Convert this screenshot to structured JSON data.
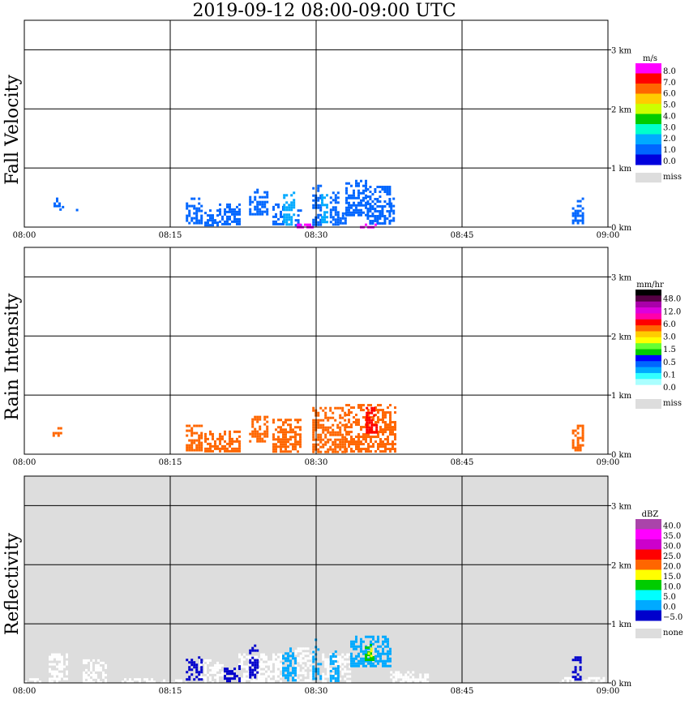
{
  "title": "2019-09-12   08:00-09:00 UTC",
  "chart_data": [
    {
      "type": "heatmap",
      "name": "Fall Velocity",
      "ylabel": "Fall Velocity",
      "time_ticks": [
        "08:00",
        "08:15",
        "08:30",
        "08:45",
        "09:00"
      ],
      "height_ticks": [
        "0 km",
        "1 km",
        "2 km",
        "3 km"
      ],
      "ylim_km": [
        0,
        3.5
      ],
      "background": "#ffffff",
      "colorbar": {
        "unit": "m/s",
        "labels": [
          "8.0",
          "7.0",
          "6.0",
          "5.0",
          "4.0",
          "3.0",
          "2.0",
          "1.0",
          "0.0"
        ],
        "colors": [
          "#ff00ff",
          "#ff0000",
          "#ff6600",
          "#ffcc00",
          "#ccff00",
          "#00cc00",
          "#00ffcc",
          "#00aaff",
          "#0066ff",
          "#0000dd"
        ],
        "miss_label": "miss",
        "miss_color": "#dddddd"
      },
      "echoes": [
        {
          "t0": 3.0,
          "t1": 3.6,
          "h0": 0.35,
          "h1": 0.5,
          "level": 0.2
        },
        {
          "t0": 3.6,
          "t1": 3.9,
          "h0": 0.3,
          "h1": 0.4,
          "level": 0.2
        },
        {
          "t0": 5.3,
          "t1": 5.5,
          "h0": 0.25,
          "h1": 0.35,
          "level": 0.2
        },
        {
          "t0": 16.6,
          "t1": 18.3,
          "h0": 0.05,
          "h1": 0.5,
          "level": 0.2
        },
        {
          "t0": 18.5,
          "t1": 19.8,
          "h0": 0.05,
          "h1": 0.3,
          "level": 0.2
        },
        {
          "t0": 20.0,
          "t1": 22.1,
          "h0": 0.05,
          "h1": 0.4,
          "level": 0.2
        },
        {
          "t0": 23.1,
          "t1": 24.9,
          "h0": 0.2,
          "h1": 0.65,
          "level": 0.2
        },
        {
          "t0": 25.5,
          "t1": 26.6,
          "h0": 0.05,
          "h1": 0.4,
          "level": 0.2
        },
        {
          "t0": 26.6,
          "t1": 27.8,
          "h0": 0.05,
          "h1": 0.6,
          "level": 1.7
        },
        {
          "t0": 27.8,
          "t1": 28.5,
          "h0": 0.05,
          "h1": 0.3,
          "level": 0.5
        },
        {
          "t0": 29.6,
          "t1": 30.5,
          "h0": 0.05,
          "h1": 0.8,
          "level": 0.5
        },
        {
          "t0": 30.5,
          "t1": 31.0,
          "h0": 0.1,
          "h1": 0.6,
          "level": 1.7
        },
        {
          "t0": 31.4,
          "t1": 32.4,
          "h0": 0.05,
          "h1": 0.6,
          "level": 0.5
        },
        {
          "t0": 32.4,
          "t1": 33.0,
          "h0": 0.05,
          "h1": 0.25,
          "level": 0.3
        },
        {
          "t0": 33.0,
          "t1": 35.2,
          "h0": 0.2,
          "h1": 0.8,
          "level": 0.2
        },
        {
          "t0": 35.2,
          "t1": 37.6,
          "h0": 0.05,
          "h1": 0.7,
          "level": 0.3
        },
        {
          "t0": 37.6,
          "t1": 38.1,
          "h0": 0.1,
          "h1": 0.5,
          "level": 0.2
        },
        {
          "t0": 28.0,
          "t1": 30.0,
          "h0": 0.0,
          "h1": 0.06,
          "level": 8.0
        },
        {
          "t0": 34.5,
          "t1": 36.0,
          "h0": 0.0,
          "h1": 0.06,
          "level": 8.0
        },
        {
          "t0": 56.3,
          "t1": 57.4,
          "h0": 0.05,
          "h1": 0.5,
          "level": 0.2
        }
      ]
    },
    {
      "type": "heatmap",
      "name": "Rain Intensity",
      "ylabel": "Rain Intensity",
      "time_ticks": [
        "08:00",
        "08:15",
        "08:30",
        "08:45",
        "09:00"
      ],
      "height_ticks": [
        "0 km",
        "1 km",
        "2 km",
        "3 km"
      ],
      "ylim_km": [
        0,
        3.5
      ],
      "background": "#ffffff",
      "colorbar": {
        "unit": "mm/hr",
        "labels": [
          "48.0",
          "12.0",
          "6.0",
          "3.0",
          "1.5",
          "0.5",
          "0.1",
          "0.0"
        ],
        "colors": [
          "#000000",
          "#550044",
          "#aa00aa",
          "#dd00dd",
          "#ff00aa",
          "#ff0000",
          "#ff6600",
          "#ffcc00",
          "#ffff00",
          "#66ff33",
          "#00cc00",
          "#0000ff",
          "#0066ff",
          "#00aaff",
          "#33ffff",
          "#aaffff",
          "#ffffff"
        ],
        "miss_label": "miss",
        "miss_color": "#dddddd"
      },
      "echoes": [
        {
          "t0": 2.9,
          "t1": 3.8,
          "h0": 0.3,
          "h1": 0.5,
          "level": 0.1
        },
        {
          "t0": 16.6,
          "t1": 18.3,
          "h0": 0.05,
          "h1": 0.5,
          "level": 0.1
        },
        {
          "t0": 18.5,
          "t1": 22.1,
          "h0": 0.05,
          "h1": 0.4,
          "level": 0.1
        },
        {
          "t0": 23.1,
          "t1": 24.9,
          "h0": 0.2,
          "h1": 0.65,
          "level": 0.1
        },
        {
          "t0": 25.5,
          "t1": 28.5,
          "h0": 0.05,
          "h1": 0.6,
          "level": 0.1
        },
        {
          "t0": 29.6,
          "t1": 33.0,
          "h0": 0.05,
          "h1": 0.8,
          "level": 0.1
        },
        {
          "t0": 33.0,
          "t1": 38.1,
          "h0": 0.05,
          "h1": 0.85,
          "level": 0.1
        },
        {
          "t0": 35.1,
          "t1": 36.2,
          "h0": 0.35,
          "h1": 0.8,
          "level": 0.5
        },
        {
          "t0": 56.3,
          "t1": 57.4,
          "h0": 0.05,
          "h1": 0.5,
          "level": 0.1
        }
      ]
    },
    {
      "type": "heatmap",
      "name": "Reflectivity",
      "ylabel": "Reflectivity",
      "time_ticks": [
        "08:00",
        "08:15",
        "08:30",
        "08:45",
        "09:00"
      ],
      "height_ticks": [
        "0 km",
        "1 km",
        "2 km",
        "3 km"
      ],
      "ylim_km": [
        0,
        3.5
      ],
      "background": "#dddddd",
      "colorbar": {
        "unit": "dBZ",
        "labels": [
          "40.0",
          "35.0",
          "30.0",
          "25.0",
          "20.0",
          "15.0",
          "10.0",
          "5.0",
          "0.0",
          "−5.0"
        ],
        "colors": [
          "#aa44aa",
          "#ff00ff",
          "#cc00cc",
          "#ff0000",
          "#ff6600",
          "#ffff00",
          "#00cc00",
          "#00ffff",
          "#00aaff",
          "#0000cc"
        ],
        "miss_label": "none",
        "miss_color": "#dddddd"
      },
      "echoes": [
        {
          "t0": 16.6,
          "t1": 18.3,
          "h0": 0.05,
          "h1": 0.45,
          "level": -5.0
        },
        {
          "t0": 20.5,
          "t1": 22.1,
          "h0": 0.05,
          "h1": 0.3,
          "level": -5.0
        },
        {
          "t0": 23.1,
          "t1": 24.0,
          "h0": 0.1,
          "h1": 0.65,
          "level": -5.0
        },
        {
          "t0": 26.5,
          "t1": 27.8,
          "h0": 0.05,
          "h1": 0.6,
          "level": 0.0
        },
        {
          "t0": 29.6,
          "t1": 30.6,
          "h0": 0.05,
          "h1": 0.75,
          "level": 0.0
        },
        {
          "t0": 31.4,
          "t1": 32.4,
          "h0": 0.05,
          "h1": 0.55,
          "level": 0.0
        },
        {
          "t0": 33.5,
          "t1": 37.6,
          "h0": 0.3,
          "h1": 0.8,
          "level": 0.0
        },
        {
          "t0": 35.0,
          "t1": 36.0,
          "h0": 0.4,
          "h1": 0.7,
          "level": 10.0
        },
        {
          "t0": 35.3,
          "t1": 35.7,
          "h0": 0.45,
          "h1": 0.6,
          "level": 15.0
        },
        {
          "t0": 56.3,
          "t1": 57.2,
          "h0": 0.05,
          "h1": 0.45,
          "level": -5.0
        }
      ],
      "clear_air": [
        {
          "t0": 0.0,
          "t1": 4.0,
          "h0": 0.0,
          "h1": 0.08
        },
        {
          "t0": 2.5,
          "t1": 4.5,
          "h0": 0.08,
          "h1": 0.5
        },
        {
          "t0": 6.0,
          "t1": 8.5,
          "h0": 0.0,
          "h1": 0.4
        },
        {
          "t0": 10.0,
          "t1": 14.0,
          "h0": 0.0,
          "h1": 0.08
        },
        {
          "t0": 14.0,
          "t1": 16.5,
          "h0": 0.0,
          "h1": 0.06
        },
        {
          "t0": 18.0,
          "t1": 20.5,
          "h0": 0.0,
          "h1": 0.4
        },
        {
          "t0": 22.0,
          "t1": 26.5,
          "h0": 0.0,
          "h1": 0.5
        },
        {
          "t0": 27.8,
          "t1": 29.6,
          "h0": 0.0,
          "h1": 0.6
        },
        {
          "t0": 30.6,
          "t1": 33.5,
          "h0": 0.0,
          "h1": 0.5
        },
        {
          "t0": 37.6,
          "t1": 41.5,
          "h0": 0.0,
          "h1": 0.2
        },
        {
          "t0": 55.0,
          "t1": 56.3,
          "h0": 0.0,
          "h1": 0.1
        },
        {
          "t0": 57.2,
          "t1": 60.0,
          "h0": 0.0,
          "h1": 0.1
        }
      ]
    }
  ]
}
